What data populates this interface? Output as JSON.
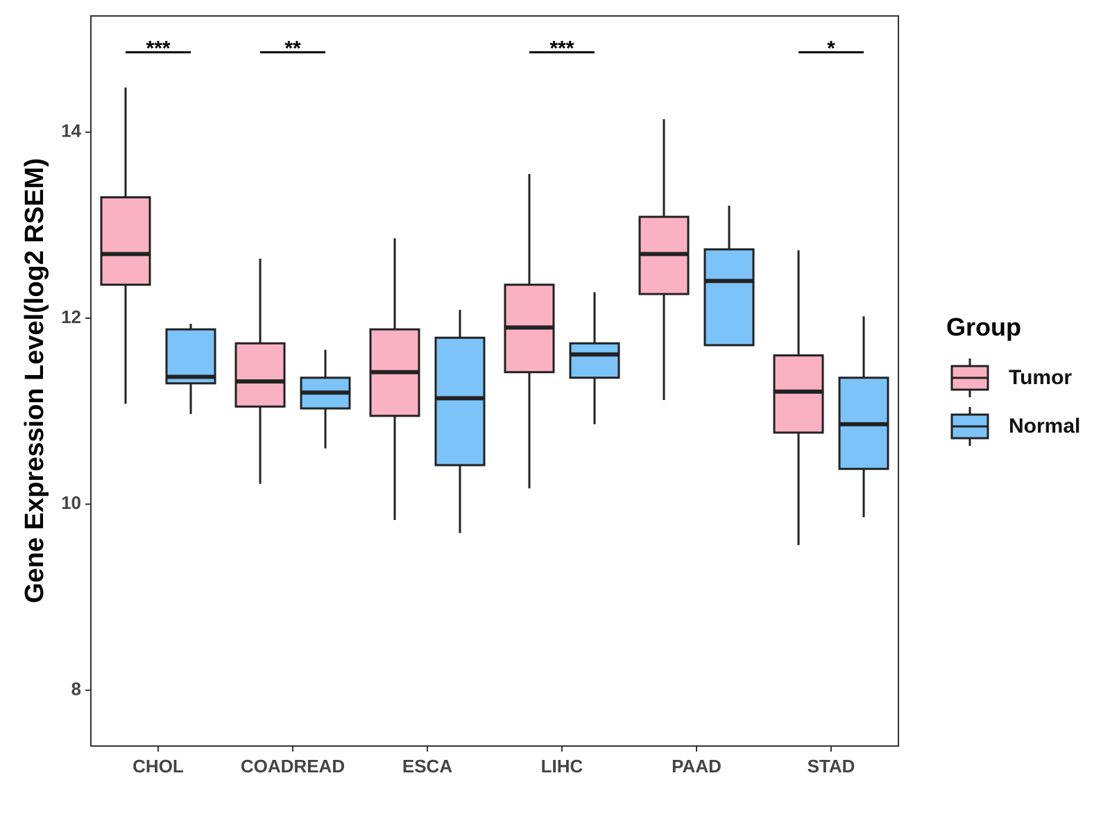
{
  "chart_data": {
    "type": "boxplot",
    "title": "",
    "xlabel": "",
    "ylabel": "Gene Expression Level(log2 RSEM)",
    "ylim": [
      7.4,
      15.25
    ],
    "yticks": [
      8,
      10,
      12,
      14
    ],
    "categories": [
      "CHOL",
      "COADREAD",
      "ESCA",
      "LIHC",
      "PAAD",
      "STAD"
    ],
    "legend": {
      "title": "Group",
      "position": "right"
    },
    "series": [
      {
        "name": "Tumor",
        "color": "#FBB1C4",
        "boxes": [
          {
            "category": "CHOL",
            "min": 11.08,
            "q1": 12.36,
            "median": 12.69,
            "q3": 13.3,
            "max": 14.48
          },
          {
            "category": "COADREAD",
            "min": 10.22,
            "q1": 11.05,
            "median": 11.32,
            "q3": 11.73,
            "max": 12.64
          },
          {
            "category": "ESCA",
            "min": 9.83,
            "q1": 10.95,
            "median": 11.42,
            "q3": 11.88,
            "max": 12.86
          },
          {
            "category": "LIHC",
            "min": 10.17,
            "q1": 11.42,
            "median": 11.9,
            "q3": 12.36,
            "max": 13.55
          },
          {
            "category": "PAAD",
            "min": 11.12,
            "q1": 12.26,
            "median": 12.69,
            "q3": 13.09,
            "max": 14.14
          },
          {
            "category": "STAD",
            "min": 9.56,
            "q1": 10.77,
            "median": 11.21,
            "q3": 11.6,
            "max": 12.73
          }
        ]
      },
      {
        "name": "Normal",
        "color": "#7CC3F8",
        "boxes": [
          {
            "category": "CHOL",
            "min": 10.97,
            "q1": 11.3,
            "median": 11.37,
            "q3": 11.88,
            "max": 11.94
          },
          {
            "category": "COADREAD",
            "min": 10.6,
            "q1": 11.03,
            "median": 11.2,
            "q3": 11.36,
            "max": 11.66
          },
          {
            "category": "ESCA",
            "min": 9.69,
            "q1": 10.42,
            "median": 11.14,
            "q3": 11.79,
            "max": 12.09
          },
          {
            "category": "LIHC",
            "min": 10.86,
            "q1": 11.36,
            "median": 11.61,
            "q3": 11.73,
            "max": 12.28
          },
          {
            "category": "PAAD",
            "min": 11.71,
            "q1": 11.71,
            "median": 12.4,
            "q3": 12.74,
            "max": 13.21
          },
          {
            "category": "STAD",
            "min": 9.86,
            "q1": 10.38,
            "median": 10.86,
            "q3": 11.36,
            "max": 12.02
          }
        ]
      }
    ],
    "significance": [
      {
        "category": "CHOL",
        "label": "***"
      },
      {
        "category": "COADREAD",
        "label": "**"
      },
      {
        "category": "LIHC",
        "label": "***"
      },
      {
        "category": "STAD",
        "label": "*"
      }
    ],
    "significance_y": 14.86
  }
}
